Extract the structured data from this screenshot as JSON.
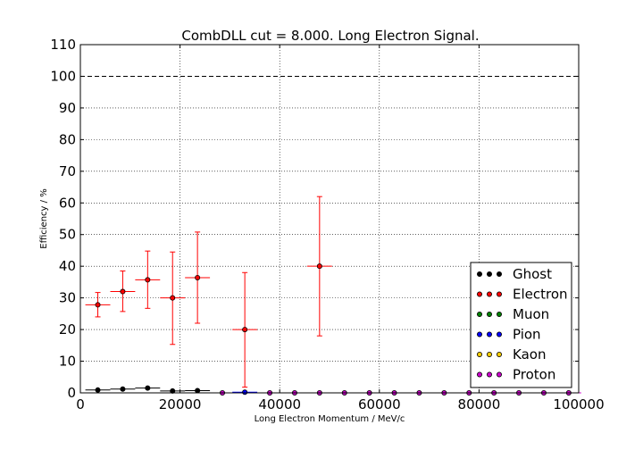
{
  "chart_data": {
    "type": "scatter",
    "title": "CombDLL cut = 8.000. Long Electron Signal.",
    "xlabel": "Long Electron Momentum / MeV/c",
    "ylabel": "Efficiency / %",
    "xlim": [
      0,
      100000
    ],
    "ylim": [
      0,
      110
    ],
    "xticks": [
      0,
      20000,
      40000,
      60000,
      80000,
      100000
    ],
    "xtick_labels": [
      "0",
      "20000",
      "40000",
      "60000",
      "80000",
      "100000"
    ],
    "yticks": [
      0,
      10,
      20,
      30,
      40,
      50,
      60,
      70,
      80,
      90,
      100,
      110
    ],
    "ytick_labels": [
      "0",
      "10",
      "20",
      "30",
      "40",
      "50",
      "60",
      "70",
      "80",
      "90",
      "100",
      "110"
    ],
    "grid": true,
    "reference_line": 100,
    "legend_position": "lower-right",
    "x_bin_halfwidth": 2500,
    "series": [
      {
        "name": "Ghost",
        "color": "#000000",
        "points": [
          {
            "x": 3500,
            "y": 0.9
          },
          {
            "x": 8500,
            "y": 1.2
          },
          {
            "x": 13500,
            "y": 1.5
          },
          {
            "x": 18500,
            "y": 0.6
          },
          {
            "x": 23500,
            "y": 0.7
          }
        ]
      },
      {
        "name": "Electron",
        "color": "#ff0000",
        "points": [
          {
            "x": 3500,
            "y": 27.8,
            "lo": 24,
            "hi": 31.7
          },
          {
            "x": 8500,
            "y": 32.0,
            "lo": 25.7,
            "hi": 38.5
          },
          {
            "x": 13500,
            "y": 35.7,
            "lo": 26.7,
            "hi": 44.8
          },
          {
            "x": 18500,
            "y": 30.0,
            "lo": 15.3,
            "hi": 44.5
          },
          {
            "x": 23500,
            "y": 36.4,
            "lo": 22.0,
            "hi": 50.8
          },
          {
            "x": 33000,
            "y": 20.0,
            "lo": 1.8,
            "hi": 38.0
          },
          {
            "x": 48000,
            "y": 40.0,
            "lo": 18.0,
            "hi": 62.0
          }
        ]
      },
      {
        "name": "Muon",
        "color": "#008000",
        "points": []
      },
      {
        "name": "Pion",
        "color": "#0000ff",
        "points": [
          {
            "x": 33000,
            "y": 0.2
          }
        ]
      },
      {
        "name": "Kaon",
        "color": "#ffcc00",
        "points": []
      },
      {
        "name": "Proton",
        "color": "#cc00cc",
        "points": [
          {
            "x": 28500,
            "y": 0
          },
          {
            "x": 38000,
            "y": 0
          },
          {
            "x": 43000,
            "y": 0
          },
          {
            "x": 48000,
            "y": 0
          },
          {
            "x": 53000,
            "y": 0
          },
          {
            "x": 58000,
            "y": 0
          },
          {
            "x": 63000,
            "y": 0
          },
          {
            "x": 68000,
            "y": 0
          },
          {
            "x": 73000,
            "y": 0
          },
          {
            "x": 78000,
            "y": 0
          },
          {
            "x": 83000,
            "y": 0
          },
          {
            "x": 88000,
            "y": 0
          },
          {
            "x": 93000,
            "y": 0
          },
          {
            "x": 98000,
            "y": 0
          }
        ]
      }
    ]
  }
}
